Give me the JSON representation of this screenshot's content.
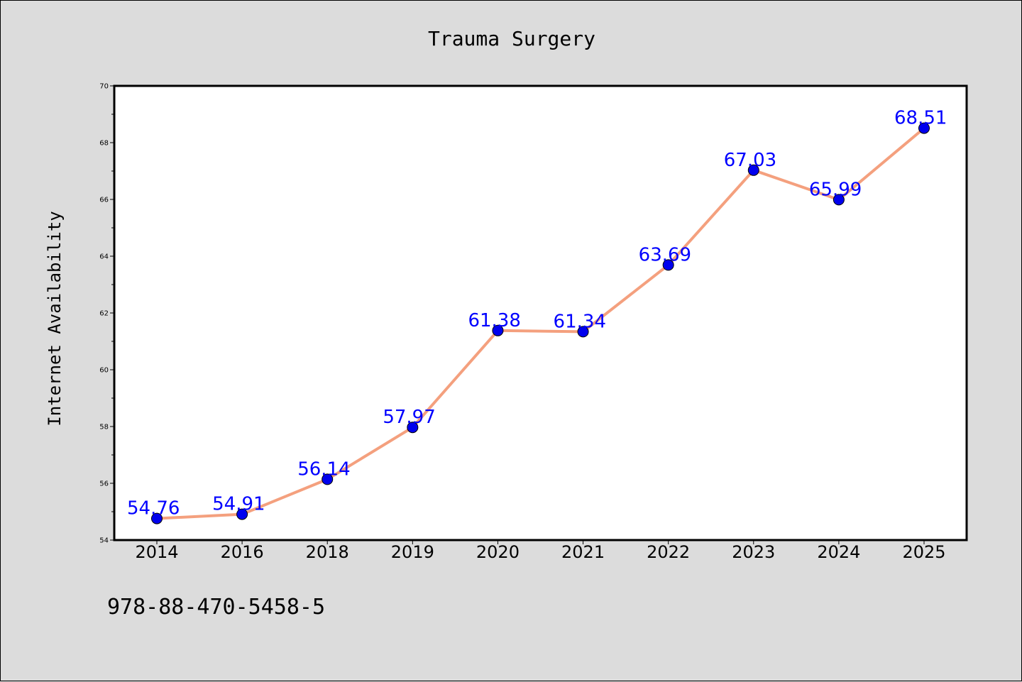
{
  "chart_data": {
    "type": "line",
    "title": "Trauma Surgery",
    "xlabel": "",
    "ylabel": "Internet Availability",
    "categories": [
      "2014",
      "2016",
      "2018",
      "2019",
      "2020",
      "2021",
      "2022",
      "2023",
      "2024",
      "2025"
    ],
    "series": [
      {
        "values": [
          54.76,
          54.91,
          56.14,
          57.97,
          61.38,
          61.34,
          63.69,
          67.03,
          65.99,
          68.51
        ],
        "data_labels": [
          "54.76",
          "54.91",
          "56.14",
          "57.97",
          "61.38",
          "61.34",
          "63.69",
          "67.03",
          "65.99",
          "68.51"
        ]
      }
    ],
    "ylim": [
      54,
      70
    ],
    "yticks": [
      "54",
      "56",
      "58",
      "60",
      "62",
      "64",
      "66",
      "68",
      "70"
    ],
    "grid": false,
    "legend": "none",
    "colors": {
      "line": "#f4a07e",
      "marker": "#0000ee",
      "data_label": "#0000ff",
      "plot_background": "#ffffff",
      "figure_background": "#dcdcdc"
    }
  },
  "annotation": "978-88-470-5458-5"
}
